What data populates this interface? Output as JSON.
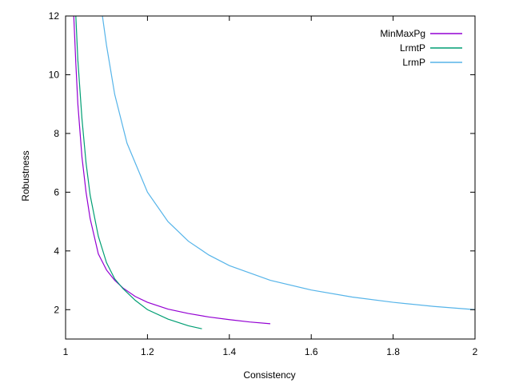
{
  "chart_data": {
    "type": "line",
    "title": "",
    "xlabel": "Consistency",
    "ylabel": "Robustness",
    "xlim": [
      1,
      2
    ],
    "ylim": [
      1,
      12
    ],
    "xticks": [
      "1",
      "1.2",
      "1.4",
      "1.6",
      "1.8",
      "2"
    ],
    "yticks": [
      "2",
      "4",
      "6",
      "8",
      "10",
      "12"
    ],
    "grid": false,
    "legend_position": "top-right",
    "series": [
      {
        "name": "MinMaxPg",
        "color": "#9400d3",
        "points": [
          [
            1.02,
            12.0
          ],
          [
            1.025,
            10.4
          ],
          [
            1.03,
            9.0
          ],
          [
            1.04,
            7.2
          ],
          [
            1.05,
            6.0
          ],
          [
            1.06,
            5.1
          ],
          [
            1.08,
            3.9
          ],
          [
            1.1,
            3.35
          ],
          [
            1.12,
            3.0
          ],
          [
            1.14,
            2.74
          ],
          [
            1.17,
            2.45
          ],
          [
            1.2,
            2.25
          ],
          [
            1.25,
            2.02
          ],
          [
            1.3,
            1.87
          ],
          [
            1.35,
            1.75
          ],
          [
            1.4,
            1.66
          ],
          [
            1.45,
            1.58
          ],
          [
            1.5,
            1.52
          ]
        ]
      },
      {
        "name": "LrmtP",
        "color": "#009e73",
        "points": [
          [
            1.025,
            12.0
          ],
          [
            1.03,
            10.5
          ],
          [
            1.04,
            8.5
          ],
          [
            1.05,
            7.0
          ],
          [
            1.06,
            5.9
          ],
          [
            1.08,
            4.5
          ],
          [
            1.1,
            3.6
          ],
          [
            1.12,
            3.05
          ],
          [
            1.14,
            2.72
          ],
          [
            1.17,
            2.32
          ],
          [
            1.2,
            2.0
          ],
          [
            1.25,
            1.68
          ],
          [
            1.3,
            1.45
          ],
          [
            1.333,
            1.35
          ]
        ]
      },
      {
        "name": "LrmP",
        "color": "#56b4e9",
        "points": [
          [
            1.09,
            12.0
          ],
          [
            1.1,
            11.0
          ],
          [
            1.12,
            9.33
          ],
          [
            1.15,
            7.67
          ],
          [
            1.2,
            6.0
          ],
          [
            1.25,
            5.0
          ],
          [
            1.3,
            4.33
          ],
          [
            1.35,
            3.86
          ],
          [
            1.4,
            3.5
          ],
          [
            1.5,
            3.0
          ],
          [
            1.6,
            2.67
          ],
          [
            1.7,
            2.43
          ],
          [
            1.8,
            2.25
          ],
          [
            1.9,
            2.11
          ],
          [
            2.0,
            2.0
          ]
        ]
      }
    ]
  }
}
